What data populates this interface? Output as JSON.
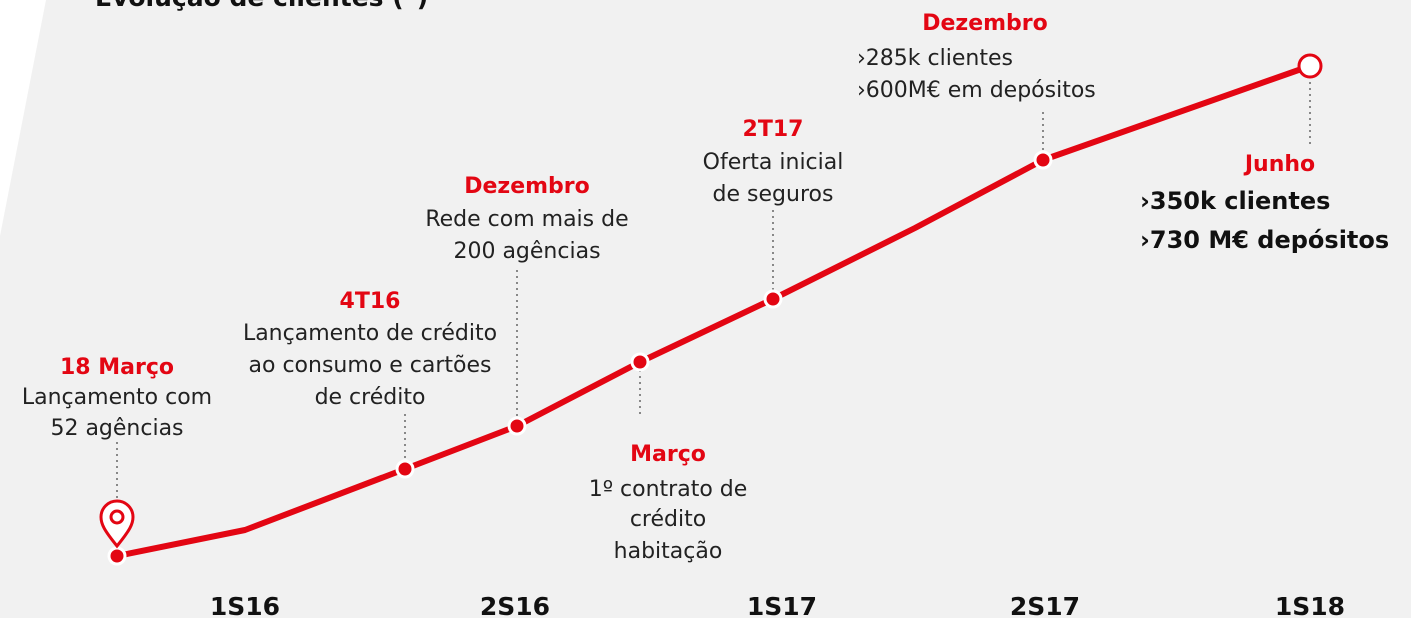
{
  "title": "Evolução de clientes (*)",
  "periods": [
    "1S16",
    "2S16",
    "1S17",
    "2S17",
    "1S18"
  ],
  "milestones": [
    {
      "heading": "18 Março",
      "lines": [
        "Lançamento com",
        "52 agências"
      ]
    },
    {
      "heading": "4T16",
      "lines": [
        "Lançamento de crédito",
        "ao consumo e cartões",
        "de crédito"
      ]
    },
    {
      "heading": "Dezembro",
      "lines": [
        "Rede com mais de",
        "200 agências"
      ]
    },
    {
      "heading": "Março",
      "lines": [
        "1º contrato de",
        "crédito",
        "habitação"
      ]
    },
    {
      "heading": "2T17",
      "lines": [
        "Oferta inicial",
        "de seguros"
      ]
    },
    {
      "heading": "Dezembro",
      "lines": [
        "›285k clientes",
        "›600M€ em depósitos"
      ]
    },
    {
      "heading": "Junho",
      "lines": [
        "›350k clientes",
        "›730 M€ depósitos"
      ]
    }
  ]
}
